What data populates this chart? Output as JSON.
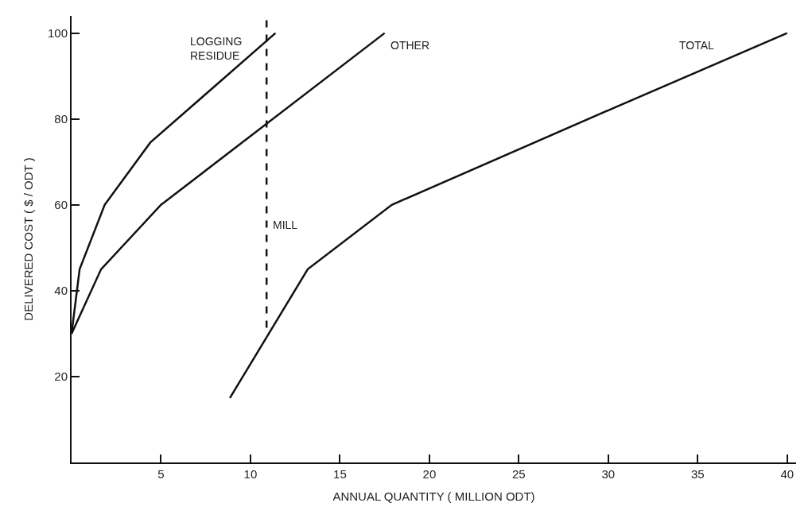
{
  "chart_data": {
    "type": "line",
    "xlabel": "ANNUAL QUANTITY ( MILLION ODT)",
    "ylabel": "DELIVERED COST ( $ / ODT )",
    "xlim": [
      0,
      40.5
    ],
    "ylim": [
      0,
      104
    ],
    "xticks": [
      5,
      10,
      15,
      20,
      25,
      30,
      35,
      40
    ],
    "yticks": [
      20,
      40,
      60,
      80,
      100
    ],
    "legend": false,
    "line_style": "solid",
    "marker": "none",
    "series": [
      {
        "name": "LOGGING\nRESIDUE",
        "color": "#111111",
        "x": [
          0,
          0.45,
          1.85,
          4.4,
          11.4
        ],
        "values": [
          30,
          45,
          60,
          74.5,
          100
        ]
      },
      {
        "name": "OTHER",
        "color": "#111111",
        "x": [
          0,
          1.65,
          5,
          17.5
        ],
        "values": [
          30,
          45,
          60,
          100
        ]
      },
      {
        "name": "TOTAL",
        "color": "#111111",
        "x": [
          8.85,
          13.2,
          17.9,
          30,
          40
        ],
        "values": [
          15,
          45,
          60,
          82,
          100
        ]
      },
      {
        "name": "MILL",
        "color": "#111111",
        "line_style": "dashed",
        "x": [
          10.9,
          10.9
        ],
        "values": [
          103,
          30
        ]
      }
    ]
  }
}
